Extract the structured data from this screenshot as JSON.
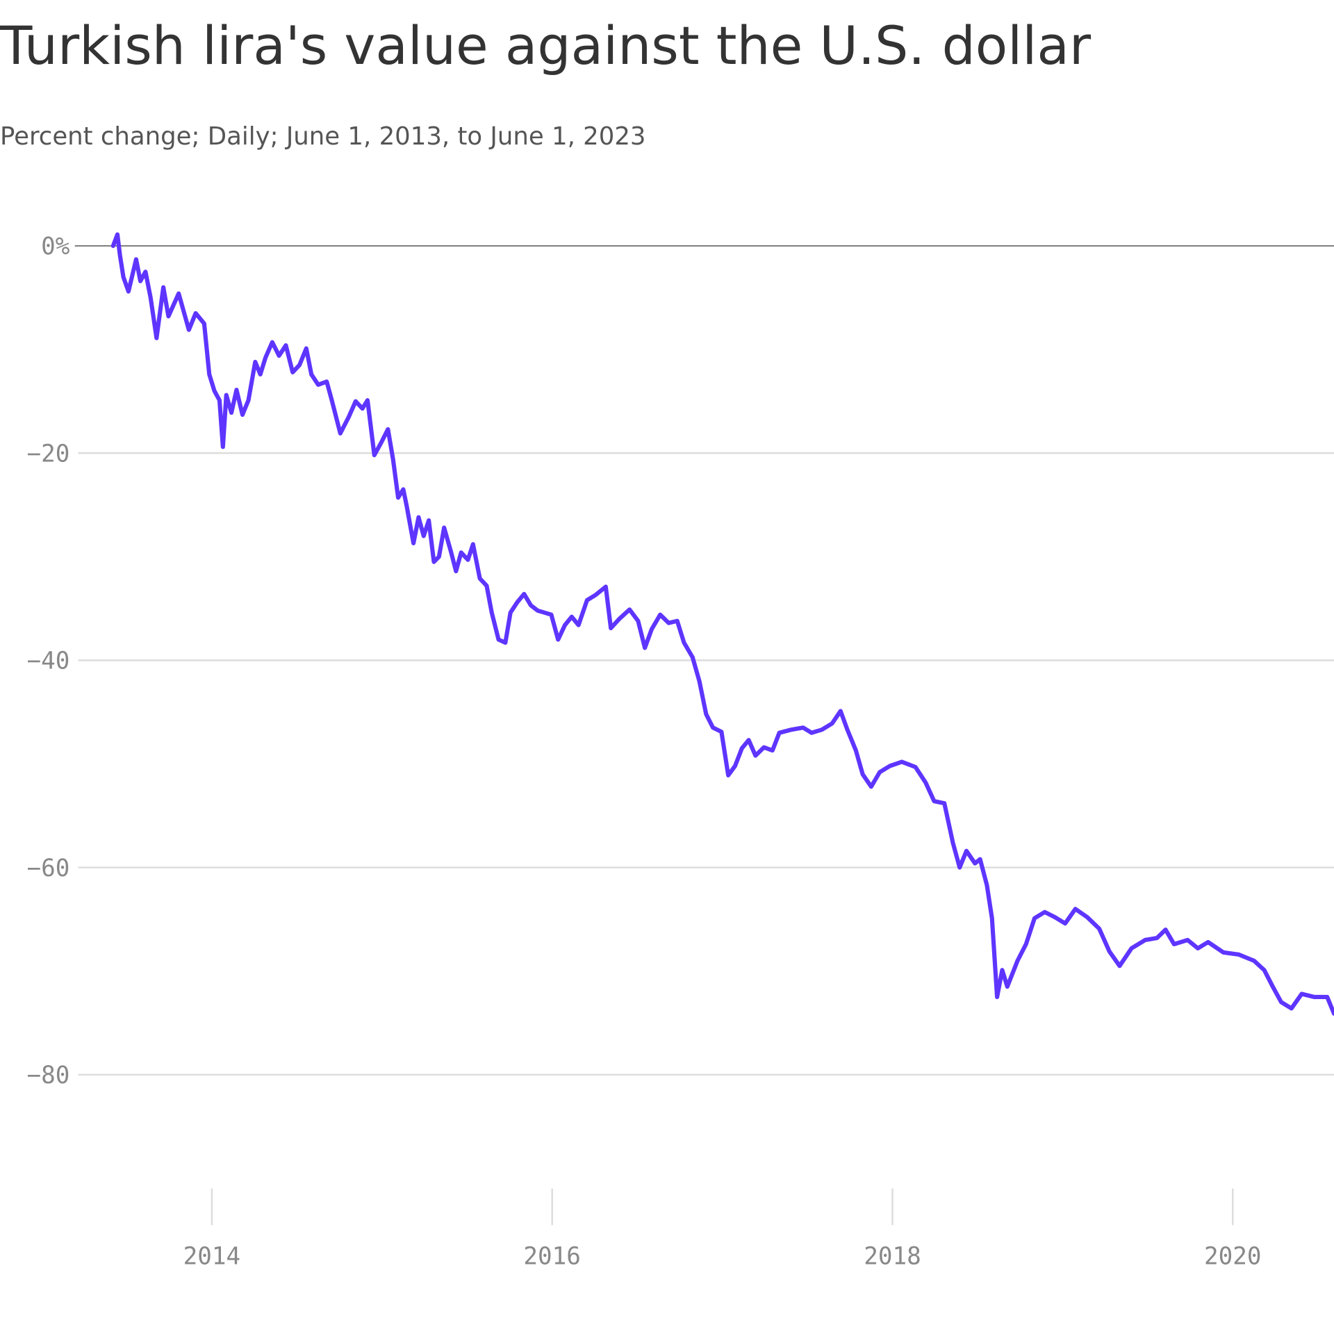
{
  "chart_data": {
    "type": "line",
    "title": "Turkish lira's value against the U.S. dollar",
    "subtitle": "Percent change; Daily; June 1, 2013, to June 1, 2023",
    "color": "#5e35ff",
    "grid": true,
    "xlim": [
      2013.2,
      2020.6
    ],
    "xticks": [
      2014,
      2016,
      2018,
      2020
    ],
    "ylim": [
      -90,
      0
    ],
    "yticks": [
      {
        "value": 0,
        "label": "0%"
      },
      {
        "value": -20,
        "label": "−20"
      },
      {
        "value": -40,
        "label": "−40"
      },
      {
        "value": -60,
        "label": "−60"
      },
      {
        "value": -80,
        "label": "−80"
      }
    ],
    "x": [
      2013.42,
      2013.445,
      2013.46,
      2013.48,
      2013.51,
      2013.555,
      2013.58,
      2013.61,
      2013.64,
      2013.675,
      2013.715,
      2013.745,
      2013.805,
      2013.865,
      2013.905,
      2013.955,
      2013.985,
      2014.015,
      2014.045,
      2014.065,
      2014.085,
      2014.115,
      2014.145,
      2014.18,
      2014.215,
      2014.255,
      2014.285,
      2014.315,
      2014.355,
      2014.395,
      2014.435,
      2014.475,
      2014.515,
      2014.555,
      2014.585,
      2014.625,
      2014.675,
      2014.705,
      2014.755,
      2014.805,
      2014.845,
      2014.885,
      2014.915,
      2014.955,
      2014.995,
      2015.035,
      2015.065,
      2015.095,
      2015.125,
      2015.145,
      2015.185,
      2015.215,
      2015.245,
      2015.275,
      2015.305,
      2015.335,
      2015.365,
      2015.405,
      2015.435,
      2015.465,
      2015.505,
      2015.535,
      2015.575,
      2015.615,
      2015.645,
      2015.685,
      2015.725,
      2015.755,
      2015.795,
      2015.835,
      2015.875,
      2015.915,
      2015.955,
      2015.995,
      2016.035,
      2016.075,
      2016.115,
      2016.155,
      2016.205,
      2016.255,
      2016.315,
      2016.345,
      2016.395,
      2016.455,
      2016.505,
      2016.545,
      2016.585,
      2016.635,
      2016.685,
      2016.735,
      2016.775,
      2016.825,
      2016.865,
      2016.905,
      2016.945,
      2016.995,
      2017.035,
      2017.075,
      2017.115,
      2017.155,
      2017.195,
      2017.245,
      2017.295,
      2017.335,
      2017.405,
      2017.475,
      2017.525,
      2017.585,
      2017.645,
      2017.695,
      2017.735,
      2017.785,
      2017.825,
      2017.875,
      2017.925,
      2017.985,
      2018.055,
      2018.135,
      2018.195,
      2018.245,
      2018.305,
      2018.355,
      2018.395,
      2018.435,
      2018.485,
      2018.515,
      2018.555,
      2018.585,
      2018.615,
      2018.645,
      2018.675,
      2018.735,
      2018.785,
      2018.835,
      2018.895,
      2018.955,
      2019.015,
      2019.075,
      2019.145,
      2019.215,
      2019.275,
      2019.335,
      2019.405,
      2019.485,
      2019.555,
      2019.605,
      2019.655,
      2019.735,
      2019.795,
      2019.855,
      2019.945,
      2020.035,
      2020.125,
      2020.185,
      2020.235,
      2020.285,
      2020.345,
      2020.405,
      2020.48,
      2020.555,
      2020.595
    ],
    "values": [
      0,
      1.1,
      -0.9,
      -3.0,
      -4.4,
      -1.3,
      -3.4,
      -2.5,
      -5.0,
      -8.9,
      -4.0,
      -6.8,
      -4.6,
      -8.1,
      -6.5,
      -7.5,
      -12.4,
      -14.0,
      -14.9,
      -19.4,
      -14.4,
      -16.1,
      -13.9,
      -16.3,
      -14.9,
      -11.2,
      -12.4,
      -10.8,
      -9.3,
      -10.6,
      -9.6,
      -12.2,
      -11.5,
      -9.9,
      -12.4,
      -13.4,
      -13.1,
      -14.9,
      -18.1,
      -16.5,
      -15.0,
      -15.7,
      -14.9,
      -20.2,
      -19.0,
      -17.7,
      -20.6,
      -24.3,
      -23.5,
      -25.1,
      -28.7,
      -26.2,
      -28.0,
      -26.5,
      -30.5,
      -30.0,
      -27.2,
      -29.5,
      -31.4,
      -29.6,
      -30.3,
      -28.8,
      -32.1,
      -32.8,
      -35.4,
      -38.0,
      -38.3,
      -35.4,
      -34.4,
      -33.6,
      -34.7,
      -35.2,
      -35.4,
      -35.6,
      -38.0,
      -36.6,
      -35.8,
      -36.6,
      -34.2,
      -33.7,
      -32.9,
      -36.9,
      -36.0,
      -35.1,
      -36.2,
      -38.8,
      -37.0,
      -35.6,
      -36.4,
      -36.2,
      -38.3,
      -39.7,
      -42.0,
      -45.2,
      -46.5,
      -46.9,
      -51.1,
      -50.2,
      -48.5,
      -47.7,
      -49.2,
      -48.4,
      -48.7,
      -47.0,
      -46.7,
      -46.5,
      -47.0,
      -46.7,
      -46.1,
      -44.9,
      -46.7,
      -48.7,
      -51.0,
      -52.2,
      -50.8,
      -50.2,
      -49.8,
      -50.3,
      -51.8,
      -53.6,
      -53.8,
      -57.6,
      -60.0,
      -58.4,
      -59.6,
      -59.2,
      -61.7,
      -64.9,
      -72.5,
      -69.9,
      -71.5,
      -69.0,
      -67.4,
      -64.9,
      -64.3,
      -64.8,
      -65.4,
      -64.0,
      -64.8,
      -65.9,
      -68.1,
      -69.5,
      -67.8,
      -67.0,
      -66.8,
      -66.0,
      -67.4,
      -67.0,
      -67.8,
      -67.2,
      -68.2,
      -68.4,
      -69.0,
      -69.9,
      -71.5,
      -73.0,
      -73.6,
      -72.2,
      -72.5,
      -72.5,
      -74.1
    ]
  }
}
